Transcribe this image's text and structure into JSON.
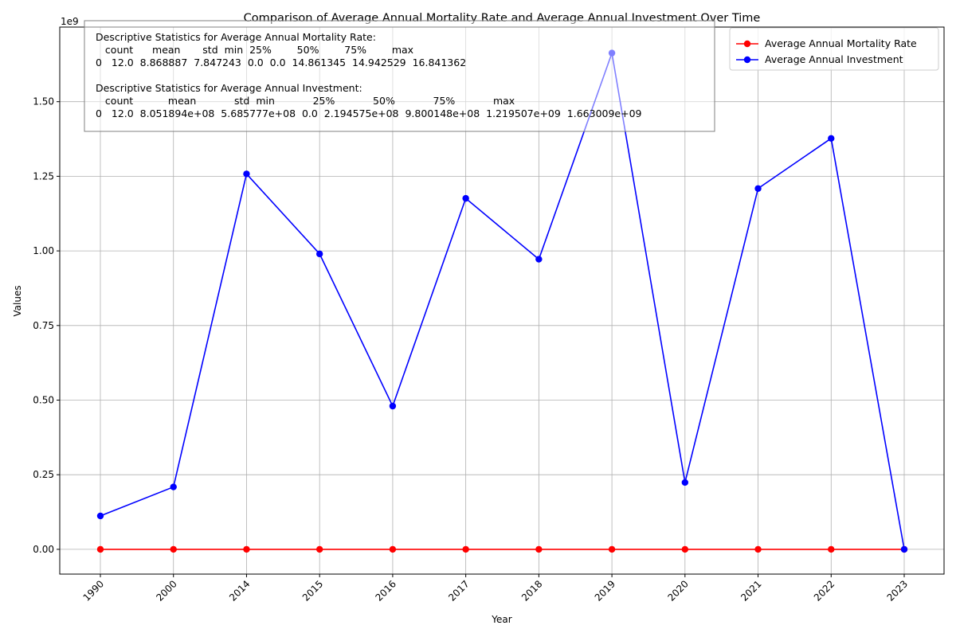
{
  "chart_data": {
    "type": "line",
    "title": "Comparison of Average Annual Mortality Rate and Average Annual Investment Over Time",
    "xlabel": "Year",
    "ylabel": "Values",
    "y_scale_label": "1e9",
    "categories": [
      "1990",
      "2000",
      "2014",
      "2015",
      "2016",
      "2017",
      "2018",
      "2019",
      "2020",
      "2021",
      "2022",
      "2023"
    ],
    "ylim": [
      -0.083,
      1.75
    ],
    "y_ticks": [
      0.0,
      0.25,
      0.5,
      0.75,
      1.0,
      1.25,
      1.5
    ],
    "y_tick_labels": [
      "0.00",
      "0.25",
      "0.50",
      "0.75",
      "1.00",
      "1.25",
      "1.50"
    ],
    "grid": true,
    "legend_placement": "top-right",
    "series": [
      {
        "name": "Average Annual Mortality Rate",
        "color": "#ff0000",
        "values": [
          0,
          0,
          0,
          0,
          0,
          0,
          0,
          0,
          0,
          0,
          0,
          0
        ]
      },
      {
        "name": "Average Annual Investment",
        "color": "#0000ff",
        "values": [
          0.112,
          0.209,
          1.258,
          0.99,
          0.48,
          1.176,
          0.972,
          1.663,
          0.224,
          1.209,
          1.377,
          0.0
        ]
      }
    ],
    "annotation_lines": [
      "Descriptive Statistics for Average Annual Mortality Rate:",
      "   count      mean       std  min  25%        50%        75%        max",
      "0   12.0  8.868887  7.847243  0.0  0.0  14.861345  14.942529  16.841362",
      "",
      "Descriptive Statistics for Average Annual Investment:",
      "   count           mean            std  min            25%            50%            75%            max",
      "0   12.0  8.051894e+08  5.685777e+08  0.0  2.194575e+08  9.800148e+08  1.219507e+09  1.663009e+09"
    ]
  }
}
